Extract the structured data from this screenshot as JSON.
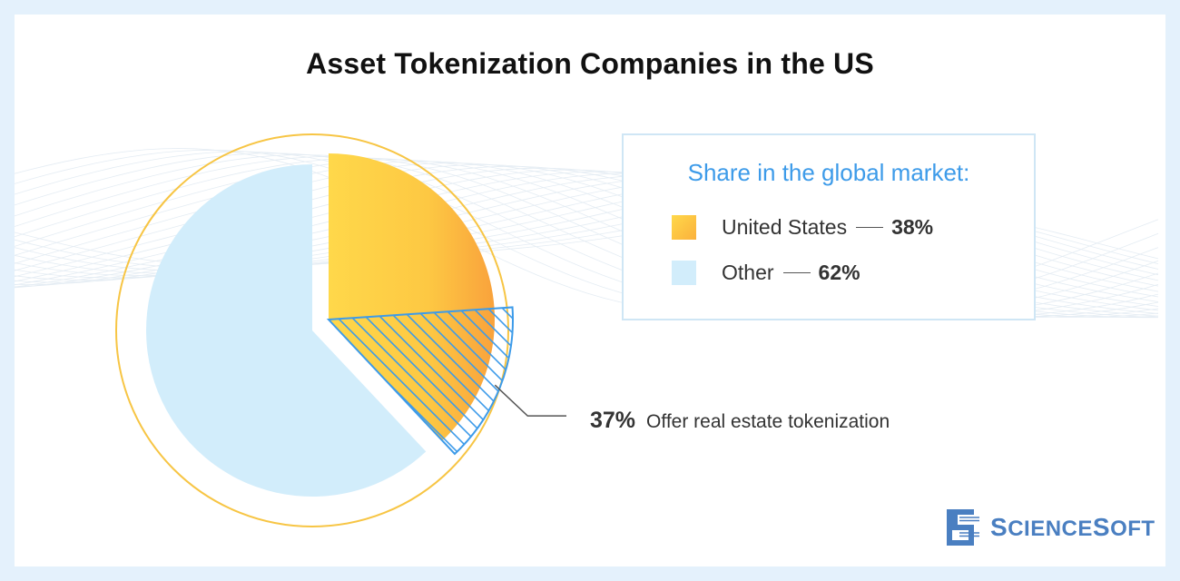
{
  "title": "Asset Tokenization Companies in the US",
  "legend": {
    "title": "Share in the global market:",
    "items": [
      {
        "name": "United States",
        "value": "38%"
      },
      {
        "name": "Other",
        "value": "62%"
      }
    ]
  },
  "callout": {
    "value": "37%",
    "text": "Offer real estate tokenization"
  },
  "brand": {
    "name": "ScienceSoft",
    "first": "S",
    "rest1": "CIENCE",
    "second": "S",
    "rest2": "OFT"
  },
  "chart_data": {
    "type": "pie",
    "title": "Asset Tokenization Companies in the US",
    "subtitle": "Share in the global market:",
    "slices": [
      {
        "label": "United States",
        "value": 38,
        "color": "#fdc843"
      },
      {
        "label": "Other",
        "value": 62,
        "color": "#d2edfb"
      }
    ],
    "sub_share": {
      "parent": "United States",
      "value": 37,
      "label": "Offer real estate tokenization",
      "pattern": "hatched",
      "color": "#3d9be9"
    },
    "legend_position": "right"
  },
  "colors": {
    "accent": "#3d9be9",
    "us_start": "#ffd84a",
    "us_end": "#f9a23c",
    "other": "#d2edfb",
    "outline": "#f7c544",
    "hatch": "#3d9be9"
  }
}
